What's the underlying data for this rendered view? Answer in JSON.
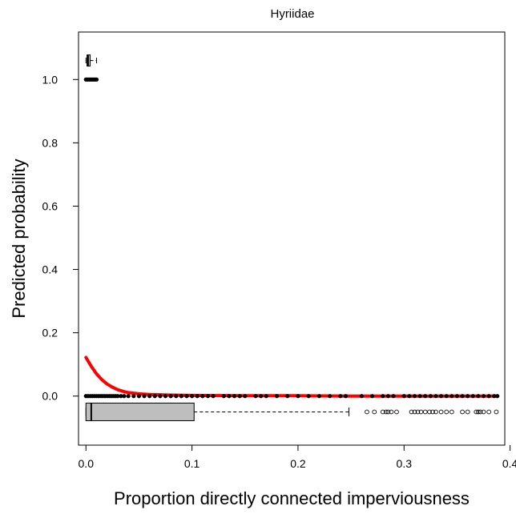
{
  "chart_data": {
    "type": "scatter",
    "title": "Hyriidae",
    "xlabel": "Proportion directly connected imperviousness",
    "ylabel": "Predicted probability",
    "xlim": [
      -0.007,
      0.395
    ],
    "ylim": [
      -0.155,
      1.15
    ],
    "xticks": [
      "0.0",
      "0.1",
      "0.2",
      "0.3",
      "0.4"
    ],
    "yticks": [
      "0.0",
      "0.2",
      "0.4",
      "0.6",
      "0.8",
      "1.0"
    ],
    "grid": false,
    "colors": {
      "fit_line": "#ff0000",
      "points": "#000000",
      "box_fill": "#bebebe"
    },
    "series": [
      {
        "role": "presence-points",
        "y": 1.0,
        "x": [
          0.0,
          0.001,
          0.002,
          0.003,
          0.004,
          0.005,
          0.006,
          0.007,
          0.008,
          0.009,
          0.01
        ]
      },
      {
        "role": "absence-points",
        "y": 0.0,
        "x": [
          0.0,
          0.002,
          0.004,
          0.006,
          0.008,
          0.01,
          0.012,
          0.014,
          0.016,
          0.018,
          0.02,
          0.022,
          0.024,
          0.026,
          0.028,
          0.03,
          0.033,
          0.036,
          0.04,
          0.045,
          0.05,
          0.055,
          0.06,
          0.065,
          0.07,
          0.075,
          0.08,
          0.085,
          0.09,
          0.095,
          0.1,
          0.105,
          0.11,
          0.115,
          0.12,
          0.13,
          0.135,
          0.14,
          0.145,
          0.15,
          0.16,
          0.165,
          0.17,
          0.18,
          0.19,
          0.2,
          0.21,
          0.22,
          0.23,
          0.24,
          0.245,
          0.26,
          0.27,
          0.28,
          0.285,
          0.29,
          0.3,
          0.305,
          0.31,
          0.315,
          0.32,
          0.325,
          0.33,
          0.335,
          0.34,
          0.345,
          0.35,
          0.355,
          0.36,
          0.365,
          0.37,
          0.375,
          0.38,
          0.385,
          0.388
        ]
      },
      {
        "role": "fitted-curve",
        "x": [
          0.0,
          0.005,
          0.01,
          0.015,
          0.02,
          0.025,
          0.03,
          0.035,
          0.04,
          0.05,
          0.06,
          0.07,
          0.08,
          0.1,
          0.15,
          0.2,
          0.25,
          0.3,
          0.35,
          0.388
        ],
        "y": [
          0.122,
          0.094,
          0.07,
          0.052,
          0.038,
          0.028,
          0.02,
          0.015,
          0.011,
          0.007,
          0.005,
          0.004,
          0.003,
          0.002,
          0.001,
          0.001,
          0.0,
          0.0,
          0.0,
          0.0
        ]
      }
    ],
    "boxplots": [
      {
        "role": "presence-box",
        "y": 1.06,
        "min": 0.0,
        "q1": 0.001,
        "median": 0.002,
        "q3": 0.004,
        "max": 0.01,
        "outliers": []
      },
      {
        "role": "absence-box",
        "y": -0.05,
        "min": 0.0,
        "q1": 0.0,
        "median": 0.005,
        "q3": 0.102,
        "max": 0.248,
        "outliers": [
          0.265,
          0.272,
          0.28,
          0.283,
          0.285,
          0.288,
          0.293,
          0.307,
          0.31,
          0.313,
          0.316,
          0.32,
          0.324,
          0.327,
          0.33,
          0.335,
          0.34,
          0.345,
          0.355,
          0.36,
          0.368,
          0.37,
          0.372,
          0.375,
          0.38,
          0.387
        ]
      }
    ]
  }
}
